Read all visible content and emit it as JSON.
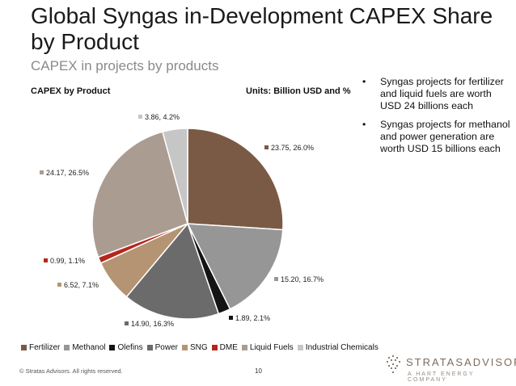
{
  "header": {
    "title": "Global Syngas in-Development CAPEX Share by Product",
    "subtitle": "CAPEX in projects by products",
    "panel_left": "CAPEX by Product",
    "panel_right": "Units: Billion USD and %"
  },
  "notes": [
    "Syngas projects for fertilizer and liquid fuels are worth USD 24 billions each",
    "Syngas projects for methanol and power generation are worth USD 15 billions each"
  ],
  "bullet_symbol": "•",
  "chart_data": {
    "type": "pie",
    "title": "CAPEX by Product",
    "categories": [
      "Fertilizer",
      "Methanol",
      "Olefins",
      "Power",
      "SNG",
      "DME",
      "Liquid Fuels",
      "Industrial Chemicals"
    ],
    "values": [
      23.75,
      15.2,
      1.89,
      14.9,
      6.52,
      0.99,
      24.17,
      3.86
    ],
    "percent": [
      26.0,
      16.7,
      2.1,
      16.3,
      7.1,
      1.1,
      26.5,
      4.2
    ],
    "data_labels": [
      "23.75, 26.0%",
      "15.20, 16.7%",
      "1.89, 2.1%",
      "14.90, 16.3%",
      "6.52, 7.1%",
      "0.99, 1.1%",
      "24.17, 26.5%",
      "3.86, 4.2%"
    ],
    "colors": [
      "#7a5a45",
      "#969696",
      "#141414",
      "#6b6b6b",
      "#b59473",
      "#b5271b",
      "#ab9c92",
      "#c6c6c6"
    ],
    "legend_position": "bottom",
    "start_angle": "12 o'clock, clockwise"
  },
  "footer": {
    "copyright": "© Stratas Advisors. All rights reserved.",
    "page": "10"
  },
  "logo": {
    "brand": "STRATASADVISORS",
    "tagline": "A HART ENERGY COMPANY"
  }
}
